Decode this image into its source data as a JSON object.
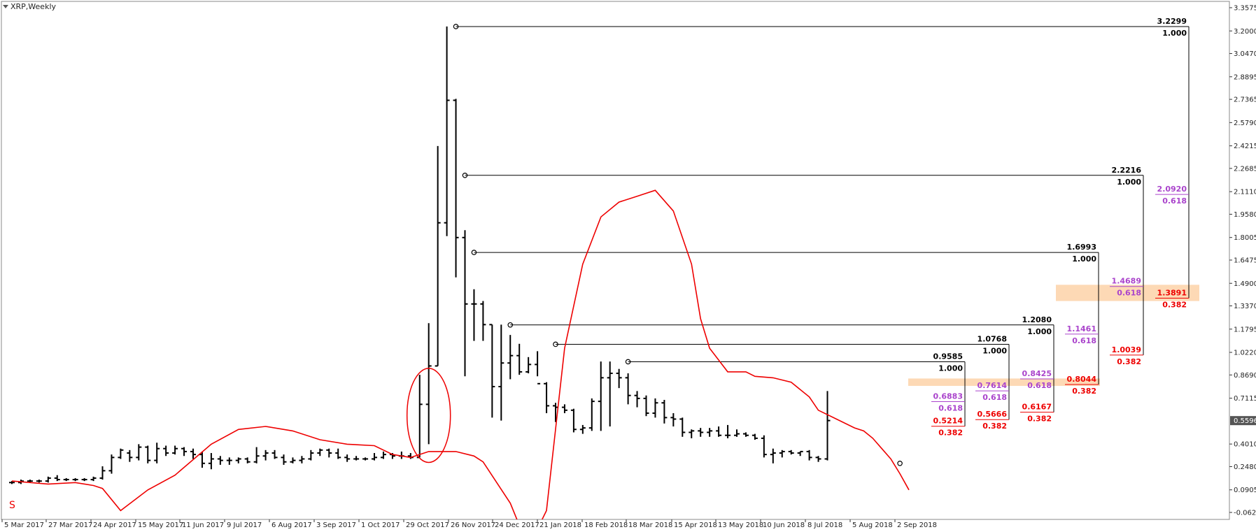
{
  "window": {
    "title": "XRP,Weekly"
  },
  "colors": {
    "candle": "#000000",
    "ma": "#ee0000",
    "fib_level": "#000000",
    "fib_618": "#aa44cc",
    "fib_382": "#ee0000",
    "zone_fill": "#fdd9b5",
    "grid_frame": "#888888",
    "price_badge": "#555555"
  },
  "price_axis": {
    "min": -0.0625,
    "max": 3.3575,
    "labels": [
      "3.3575",
      "3.2000",
      "3.0470",
      "2.8895",
      "2.7365",
      "2.5790",
      "2.4215",
      "2.2685",
      "2.1110",
      "1.9580",
      "1.8005",
      "1.6475",
      "1.4900",
      "1.3370",
      "1.1795",
      "1.0220",
      "0.8690",
      "0.7115",
      "0.5596",
      "0.4010",
      "0.2480",
      "0.0905",
      "-0.0625"
    ],
    "current_price": "0.5596"
  },
  "time_axis": {
    "labels": [
      "5 Mar 2017",
      "27 Mar 2017",
      "24 Apr 2017",
      "15 May 2017",
      "11 Jun 2017",
      "9 Jul 2017",
      "6 Aug 2017",
      "3 Sep 2017",
      "1 Oct 2017",
      "29 Oct 2017",
      "26 Nov 2017",
      "24 Dec 2017",
      "21 Jan 2018",
      "18 Feb 2018",
      "18 Mar 2018",
      "15 Apr 2018",
      "13 May 2018",
      "10 Jun 2018",
      "8 Jul 2018",
      "5 Aug 2018",
      "2 Sep 2018"
    ]
  },
  "marker_label": "S",
  "chart_data": {
    "type": "bar",
    "title": "XRP,Weekly",
    "ylim": [
      -0.0625,
      3.3575
    ],
    "grid": false,
    "ohlc_weekly": [
      {
        "open": 0.14,
        "high": 0.15,
        "low": 0.13,
        "close": 0.14
      },
      {
        "open": 0.14,
        "high": 0.16,
        "low": 0.13,
        "close": 0.15
      },
      {
        "open": 0.15,
        "high": 0.16,
        "low": 0.14,
        "close": 0.15
      },
      {
        "open": 0.15,
        "high": 0.16,
        "low": 0.14,
        "close": 0.15
      },
      {
        "open": 0.15,
        "high": 0.18,
        "low": 0.14,
        "close": 0.17
      },
      {
        "open": 0.17,
        "high": 0.19,
        "low": 0.15,
        "close": 0.16
      },
      {
        "open": 0.16,
        "high": 0.17,
        "low": 0.15,
        "close": 0.16
      },
      {
        "open": 0.16,
        "high": 0.17,
        "low": 0.15,
        "close": 0.16
      },
      {
        "open": 0.16,
        "high": 0.17,
        "low": 0.15,
        "close": 0.16
      },
      {
        "open": 0.16,
        "high": 0.18,
        "low": 0.15,
        "close": 0.17
      },
      {
        "open": 0.17,
        "high": 0.25,
        "low": 0.16,
        "close": 0.22
      },
      {
        "open": 0.22,
        "high": 0.33,
        "low": 0.2,
        "close": 0.31
      },
      {
        "open": 0.31,
        "high": 0.37,
        "low": 0.3,
        "close": 0.36
      },
      {
        "open": 0.34,
        "high": 0.36,
        "low": 0.28,
        "close": 0.31
      },
      {
        "open": 0.31,
        "high": 0.4,
        "low": 0.29,
        "close": 0.38
      },
      {
        "open": 0.38,
        "high": 0.39,
        "low": 0.27,
        "close": 0.29
      },
      {
        "open": 0.29,
        "high": 0.41,
        "low": 0.27,
        "close": 0.37
      },
      {
        "open": 0.37,
        "high": 0.39,
        "low": 0.32,
        "close": 0.34
      },
      {
        "open": 0.34,
        "high": 0.39,
        "low": 0.33,
        "close": 0.37
      },
      {
        "open": 0.37,
        "high": 0.38,
        "low": 0.32,
        "close": 0.35
      },
      {
        "open": 0.35,
        "high": 0.37,
        "low": 0.3,
        "close": 0.33
      },
      {
        "open": 0.33,
        "high": 0.35,
        "low": 0.24,
        "close": 0.27
      },
      {
        "open": 0.27,
        "high": 0.34,
        "low": 0.23,
        "close": 0.3
      },
      {
        "open": 0.3,
        "high": 0.32,
        "low": 0.26,
        "close": 0.29
      },
      {
        "open": 0.29,
        "high": 0.31,
        "low": 0.26,
        "close": 0.29
      },
      {
        "open": 0.29,
        "high": 0.31,
        "low": 0.27,
        "close": 0.3
      },
      {
        "open": 0.3,
        "high": 0.31,
        "low": 0.27,
        "close": 0.28
      },
      {
        "open": 0.28,
        "high": 0.38,
        "low": 0.27,
        "close": 0.32
      },
      {
        "open": 0.32,
        "high": 0.36,
        "low": 0.29,
        "close": 0.34
      },
      {
        "open": 0.34,
        "high": 0.36,
        "low": 0.3,
        "close": 0.31
      },
      {
        "open": 0.31,
        "high": 0.33,
        "low": 0.26,
        "close": 0.28
      },
      {
        "open": 0.28,
        "high": 0.31,
        "low": 0.27,
        "close": 0.29
      },
      {
        "open": 0.29,
        "high": 0.32,
        "low": 0.27,
        "close": 0.3
      },
      {
        "open": 0.3,
        "high": 0.36,
        "low": 0.29,
        "close": 0.34
      },
      {
        "open": 0.34,
        "high": 0.37,
        "low": 0.32,
        "close": 0.36
      },
      {
        "open": 0.36,
        "high": 0.37,
        "low": 0.31,
        "close": 0.34
      },
      {
        "open": 0.34,
        "high": 0.37,
        "low": 0.3,
        "close": 0.31
      },
      {
        "open": 0.31,
        "high": 0.33,
        "low": 0.28,
        "close": 0.3
      },
      {
        "open": 0.3,
        "high": 0.32,
        "low": 0.29,
        "close": 0.3
      },
      {
        "open": 0.3,
        "high": 0.31,
        "low": 0.29,
        "close": 0.3
      },
      {
        "open": 0.3,
        "high": 0.34,
        "low": 0.29,
        "close": 0.31
      },
      {
        "open": 0.31,
        "high": 0.35,
        "low": 0.3,
        "close": 0.33
      },
      {
        "open": 0.33,
        "high": 0.34,
        "low": 0.3,
        "close": 0.32
      },
      {
        "open": 0.32,
        "high": 0.35,
        "low": 0.3,
        "close": 0.32
      },
      {
        "open": 0.32,
        "high": 0.34,
        "low": 0.3,
        "close": 0.31
      },
      {
        "open": 0.31,
        "high": 0.87,
        "low": 0.31,
        "close": 0.67
      },
      {
        "open": 0.67,
        "high": 1.22,
        "low": 0.4,
        "close": 0.93
      },
      {
        "open": 0.93,
        "high": 2.42,
        "low": 0.93,
        "close": 1.9
      },
      {
        "open": 1.9,
        "high": 3.23,
        "low": 1.81,
        "close": 2.73
      },
      {
        "open": 2.73,
        "high": 2.74,
        "low": 1.53,
        "close": 1.8
      },
      {
        "open": 1.8,
        "high": 1.85,
        "low": 0.86,
        "close": 1.35
      },
      {
        "open": 1.35,
        "high": 1.45,
        "low": 1.1,
        "close": 1.35
      },
      {
        "open": 1.35,
        "high": 1.37,
        "low": 1.1,
        "close": 1.21
      },
      {
        "open": 1.21,
        "high": 1.21,
        "low": 0.58,
        "close": 0.79
      },
      {
        "open": 0.79,
        "high": 1.21,
        "low": 0.56,
        "close": 0.95
      },
      {
        "open": 0.95,
        "high": 1.14,
        "low": 0.84,
        "close": 1.0
      },
      {
        "open": 1.0,
        "high": 1.08,
        "low": 0.87,
        "close": 0.89
      },
      {
        "open": 0.89,
        "high": 0.99,
        "low": 0.88,
        "close": 0.94
      },
      {
        "open": 0.94,
        "high": 1.03,
        "low": 0.86,
        "close": 0.81
      },
      {
        "open": 0.81,
        "high": 0.82,
        "low": 0.61,
        "close": 0.66
      },
      {
        "open": 0.66,
        "high": 0.68,
        "low": 0.55,
        "close": 0.65
      },
      {
        "open": 0.65,
        "high": 0.67,
        "low": 0.61,
        "close": 0.63
      },
      {
        "open": 0.63,
        "high": 0.64,
        "low": 0.48,
        "close": 0.5
      },
      {
        "open": 0.5,
        "high": 0.53,
        "low": 0.47,
        "close": 0.51
      },
      {
        "open": 0.51,
        "high": 0.71,
        "low": 0.49,
        "close": 0.69
      },
      {
        "open": 0.69,
        "high": 0.96,
        "low": 0.49,
        "close": 0.85
      },
      {
        "open": 0.85,
        "high": 0.96,
        "low": 0.52,
        "close": 0.88
      },
      {
        "open": 0.88,
        "high": 0.91,
        "low": 0.78,
        "close": 0.85
      },
      {
        "open": 0.85,
        "high": 0.88,
        "low": 0.67,
        "close": 0.73
      },
      {
        "open": 0.73,
        "high": 0.76,
        "low": 0.65,
        "close": 0.71
      },
      {
        "open": 0.71,
        "high": 0.73,
        "low": 0.59,
        "close": 0.61
      },
      {
        "open": 0.61,
        "high": 0.71,
        "low": 0.58,
        "close": 0.68
      },
      {
        "open": 0.68,
        "high": 0.7,
        "low": 0.54,
        "close": 0.58
      },
      {
        "open": 0.58,
        "high": 0.61,
        "low": 0.52,
        "close": 0.57
      },
      {
        "open": 0.57,
        "high": 0.58,
        "low": 0.45,
        "close": 0.48
      },
      {
        "open": 0.48,
        "high": 0.5,
        "low": 0.44,
        "close": 0.49
      },
      {
        "open": 0.49,
        "high": 0.51,
        "low": 0.45,
        "close": 0.48
      },
      {
        "open": 0.48,
        "high": 0.51,
        "low": 0.45,
        "close": 0.49
      },
      {
        "open": 0.49,
        "high": 0.52,
        "low": 0.45,
        "close": 0.46
      },
      {
        "open": 0.46,
        "high": 0.53,
        "low": 0.44,
        "close": 0.46
      },
      {
        "open": 0.46,
        "high": 0.5,
        "low": 0.45,
        "close": 0.47
      },
      {
        "open": 0.47,
        "high": 0.48,
        "low": 0.45,
        "close": 0.46
      },
      {
        "open": 0.46,
        "high": 0.47,
        "low": 0.43,
        "close": 0.44
      },
      {
        "open": 0.44,
        "high": 0.46,
        "low": 0.31,
        "close": 0.33
      },
      {
        "open": 0.33,
        "high": 0.37,
        "low": 0.27,
        "close": 0.34
      },
      {
        "open": 0.34,
        "high": 0.36,
        "low": 0.31,
        "close": 0.35
      },
      {
        "open": 0.35,
        "high": 0.36,
        "low": 0.33,
        "close": 0.34
      },
      {
        "open": 0.34,
        "high": 0.35,
        "low": 0.32,
        "close": 0.35
      },
      {
        "open": 0.35,
        "high": 0.36,
        "low": 0.29,
        "close": 0.31
      },
      {
        "open": 0.31,
        "high": 0.32,
        "low": 0.28,
        "close": 0.3
      },
      {
        "open": 0.3,
        "high": 0.76,
        "low": 0.29,
        "close": 0.56
      }
    ],
    "moving_average": [
      {
        "week": 0,
        "value": 0.15
      },
      {
        "week": 4,
        "value": 0.13
      },
      {
        "week": 7,
        "value": 0.14
      },
      {
        "week": 9,
        "value": 0.12
      },
      {
        "week": 10,
        "value": 0.1
      },
      {
        "week": 12,
        "value": -0.05
      },
      {
        "week": 15,
        "value": 0.09
      },
      {
        "week": 18,
        "value": 0.19
      },
      {
        "week": 22,
        "value": 0.4
      },
      {
        "week": 25,
        "value": 0.5
      },
      {
        "week": 28,
        "value": 0.52
      },
      {
        "week": 31,
        "value": 0.49
      },
      {
        "week": 34,
        "value": 0.43
      },
      {
        "week": 37,
        "value": 0.4
      },
      {
        "week": 40,
        "value": 0.39
      },
      {
        "week": 42,
        "value": 0.33
      },
      {
        "week": 44,
        "value": 0.31
      },
      {
        "week": 46,
        "value": 0.35
      },
      {
        "week": 49,
        "value": 0.35
      },
      {
        "week": 51,
        "value": 0.32
      },
      {
        "week": 52,
        "value": 0.28
      },
      {
        "week": 55,
        "value": 0.0
      },
      {
        "week": 57,
        "value": -0.3
      },
      {
        "week": 59,
        "value": -0.05
      },
      {
        "week": 61,
        "value": 1.05
      },
      {
        "week": 63,
        "value": 1.62
      },
      {
        "week": 65,
        "value": 1.94
      },
      {
        "week": 67,
        "value": 2.04
      },
      {
        "week": 69,
        "value": 2.08
      },
      {
        "week": 71,
        "value": 2.12
      },
      {
        "week": 73,
        "value": 1.98
      },
      {
        "week": 75,
        "value": 1.62
      },
      {
        "week": 76,
        "value": 1.25
      },
      {
        "week": 77,
        "value": 1.05
      },
      {
        "week": 79,
        "value": 0.89
      },
      {
        "week": 81,
        "value": 0.89
      },
      {
        "week": 82,
        "value": 0.86
      },
      {
        "week": 84,
        "value": 0.85
      },
      {
        "week": 86,
        "value": 0.82
      },
      {
        "week": 88,
        "value": 0.72
      },
      {
        "week": 89,
        "value": 0.63
      },
      {
        "week": 91,
        "value": 0.57
      },
      {
        "week": 93,
        "value": 0.51
      },
      {
        "week": 94,
        "value": 0.49
      },
      {
        "week": 95,
        "value": 0.44
      },
      {
        "week": 96,
        "value": 0.37
      },
      {
        "week": 97,
        "value": 0.3
      },
      {
        "week": 98,
        "value": 0.2
      },
      {
        "week": 99,
        "value": 0.09
      }
    ],
    "swing_markers": [
      {
        "week": 49,
        "price": 3.2299
      },
      {
        "week": 50,
        "price": 2.2216
      },
      {
        "week": 51,
        "price": 1.6993
      },
      {
        "week": 55,
        "price": 1.208
      },
      {
        "week": 60,
        "price": 1.0768
      },
      {
        "week": 68,
        "price": 0.9585
      },
      {
        "week": 98,
        "price": 0.27
      }
    ],
    "highlight_ellipse": {
      "week": 46,
      "price_low": 0.3,
      "price_high": 0.89
    },
    "fib_levels": [
      {
        "top": "3.2299",
        "top_ratio": "1.000",
        "mid": "2.0920",
        "mid_ratio": "0.618",
        "low": "1.3891",
        "low_ratio": "0.382",
        "price_top": 3.2299,
        "price_mid": 2.092,
        "price_low": 1.3891,
        "start_week": 49
      },
      {
        "top": "2.2216",
        "top_ratio": "1.000",
        "mid": "1.4689",
        "mid_ratio": "0.618",
        "low": "1.0039",
        "low_ratio": "0.382",
        "price_top": 2.2216,
        "price_mid": 1.4689,
        "price_low": 1.0039,
        "start_week": 50
      },
      {
        "top": "1.6993",
        "top_ratio": "1.000",
        "mid": "1.1461",
        "mid_ratio": "0.618",
        "low": "0.8044",
        "low_ratio": "0.382",
        "price_top": 1.6993,
        "price_mid": 1.1461,
        "price_low": 0.8044,
        "start_week": 51
      },
      {
        "top": "1.2080",
        "top_ratio": "1.000",
        "mid": "0.8425",
        "mid_ratio": "0.618",
        "low": "0.6167",
        "low_ratio": "0.382",
        "price_top": 1.208,
        "price_mid": 0.8425,
        "price_low": 0.6167,
        "start_week": 55
      },
      {
        "top": "1.0768",
        "top_ratio": "1.000",
        "mid": "0.7614",
        "mid_ratio": "0.618",
        "low": "0.5666",
        "low_ratio": "0.382",
        "price_top": 1.0768,
        "price_mid": 0.7614,
        "price_low": 0.5666,
        "start_week": 60
      },
      {
        "top": "0.9585",
        "top_ratio": "1.000",
        "mid": "0.6883",
        "mid_ratio": "0.618",
        "low": "0.5214",
        "low_ratio": "0.382",
        "price_top": 0.9585,
        "price_mid": 0.6883,
        "price_low": 0.5214,
        "start_week": 68
      }
    ],
    "zones": [
      {
        "price_low": 1.37,
        "price_high": 1.48
      },
      {
        "price_low": 0.795,
        "price_high": 0.845
      }
    ]
  }
}
